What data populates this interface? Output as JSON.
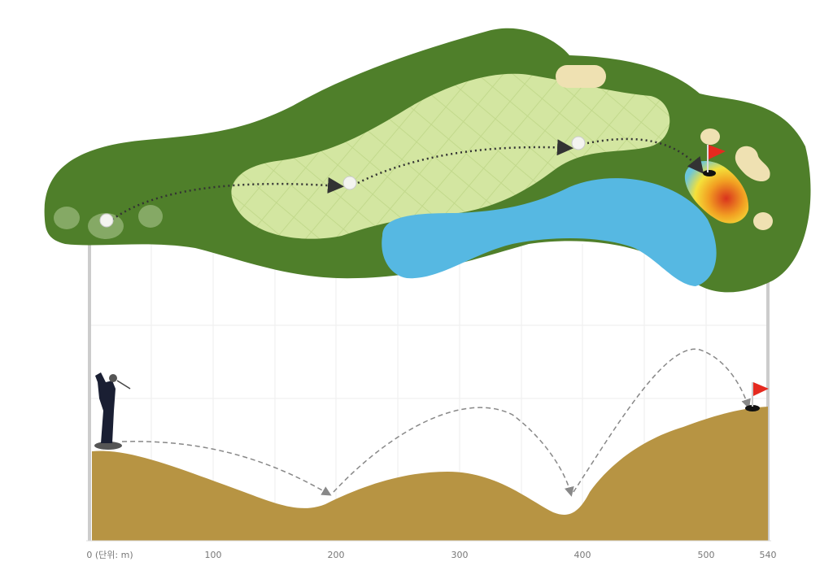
{
  "axis": {
    "labels": [
      "0 (단위: m)",
      "100",
      "200",
      "300",
      "400",
      "500",
      "540"
    ]
  }
}
